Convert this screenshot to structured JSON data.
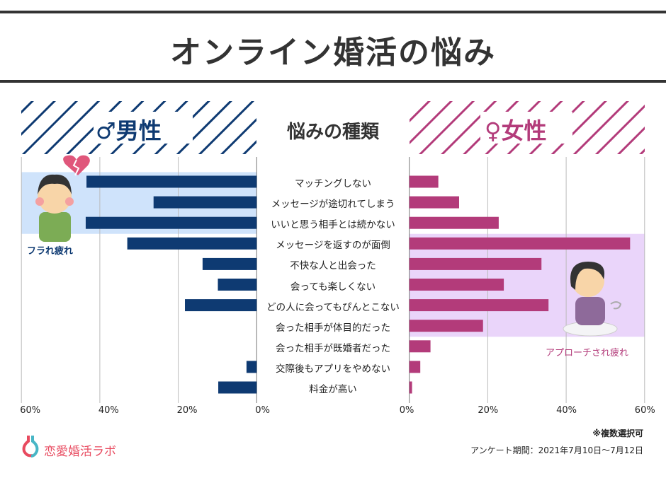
{
  "title": "オンライン婚活の悩み",
  "headers": {
    "male": "男性",
    "female": "女性",
    "center": "悩みの種類",
    "male_symbol": "♂",
    "female_symbol": "♀"
  },
  "annotations": {
    "male": "フラれ疲れ",
    "female": "アプローチされ疲れ"
  },
  "footer": {
    "note": "※複数選択可",
    "period": "アンケート期間：2021年7月10日～7月12日",
    "logo": "恋愛婚活ラボ"
  },
  "colors": {
    "male": "#0e3a72",
    "female": "#b33b7a",
    "male_highlight": "#cfe3fb",
    "female_highlight": "#ead5fa",
    "stripe_male": "#0e3a72",
    "stripe_female": "#b33b7a"
  },
  "chart_data": {
    "type": "bar",
    "orientation": "horizontal-butterfly",
    "categories": [
      "マッチングしない",
      "メッセージが途切れてしまう",
      "いいと思う相手とは続かない",
      "メッセージを返すのが面倒",
      "不快な人と出会った",
      "会っても楽しくない",
      "どの人に会ってもぴんとこない",
      "会った相手が体目的だった",
      "会った相手が既婚者だった",
      "交際後もアプリをやめない",
      "料金が高い"
    ],
    "series": [
      {
        "name": "男性",
        "values": [
          43.4,
          26.3,
          43.6,
          33.0,
          13.8,
          9.9,
          18.3,
          0,
          0,
          2.6,
          9.8
        ]
      },
      {
        "name": "女性",
        "values": [
          7.4,
          12.7,
          22.8,
          56.3,
          33.7,
          24.1,
          35.5,
          18.8,
          5.4,
          2.8,
          0.7
        ]
      }
    ],
    "xlim": [
      0,
      60
    ],
    "male_ticks": [
      "60%",
      "40%",
      "20%",
      "0%"
    ],
    "female_ticks": [
      "0%",
      "20%",
      "40%",
      "60%"
    ],
    "grid": true,
    "highlights": {
      "male": [
        "マッチングしない",
        "メッセージが途切れてしまう",
        "いいと思う相手とは続かない"
      ],
      "female": [
        "メッセージを返すのが面倒",
        "不快な人と出会った",
        "会っても楽しくない",
        "どの人に会ってもぴんとこない",
        "会った相手が体目的だった"
      ]
    }
  }
}
